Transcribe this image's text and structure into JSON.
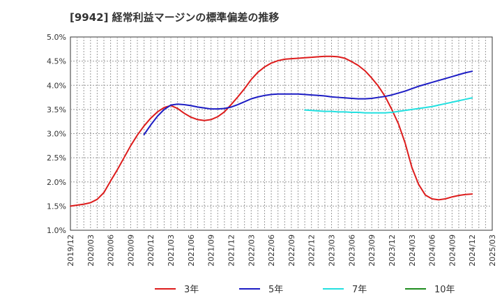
{
  "chart_data": {
    "type": "line",
    "title": "[9942]  経常利益マージンの標準偏差の推移",
    "x_ticks": [
      "2019/12",
      "2020/03",
      "2020/06",
      "2020/09",
      "2020/12",
      "2021/03",
      "2021/06",
      "2021/09",
      "2021/12",
      "2022/03",
      "2022/06",
      "2022/09",
      "2022/12",
      "2023/03",
      "2023/06",
      "2023/09",
      "2023/12",
      "2024/03",
      "2024/06",
      "2024/09",
      "2024/12",
      "2025/03"
    ],
    "y_ticks": [
      "1.0%",
      "1.5%",
      "2.0%",
      "2.5%",
      "3.0%",
      "3.5%",
      "4.0%",
      "4.5%",
      "5.0%"
    ],
    "ylim": [
      1.0,
      5.0
    ],
    "grid": true,
    "legend_position": "bottom",
    "series": [
      {
        "name": "3年",
        "color": "#dd1c1c",
        "points": [
          [
            "2019/12",
            1.5
          ],
          [
            "2020/01",
            1.52
          ],
          [
            "2020/02",
            1.54
          ],
          [
            "2020/03",
            1.57
          ],
          [
            "2020/04",
            1.64
          ],
          [
            "2020/05",
            1.78
          ],
          [
            "2020/06",
            2.02
          ],
          [
            "2020/07",
            2.25
          ],
          [
            "2020/08",
            2.5
          ],
          [
            "2020/09",
            2.75
          ],
          [
            "2020/10",
            2.97
          ],
          [
            "2020/11",
            3.16
          ],
          [
            "2020/12",
            3.32
          ],
          [
            "2021/01",
            3.45
          ],
          [
            "2021/02",
            3.54
          ],
          [
            "2021/03",
            3.58
          ],
          [
            "2021/04",
            3.52
          ],
          [
            "2021/05",
            3.42
          ],
          [
            "2021/06",
            3.34
          ],
          [
            "2021/07",
            3.29
          ],
          [
            "2021/08",
            3.27
          ],
          [
            "2021/09",
            3.29
          ],
          [
            "2021/10",
            3.35
          ],
          [
            "2021/11",
            3.45
          ],
          [
            "2021/12",
            3.6
          ],
          [
            "2022/01",
            3.76
          ],
          [
            "2022/02",
            3.93
          ],
          [
            "2022/03",
            4.12
          ],
          [
            "2022/04",
            4.27
          ],
          [
            "2022/05",
            4.38
          ],
          [
            "2022/06",
            4.46
          ],
          [
            "2022/07",
            4.51
          ],
          [
            "2022/08",
            4.54
          ],
          [
            "2022/09",
            4.55
          ],
          [
            "2022/10",
            4.56
          ],
          [
            "2022/11",
            4.57
          ],
          [
            "2022/12",
            4.58
          ],
          [
            "2023/01",
            4.59
          ],
          [
            "2023/02",
            4.6
          ],
          [
            "2023/03",
            4.6
          ],
          [
            "2023/04",
            4.59
          ],
          [
            "2023/05",
            4.56
          ],
          [
            "2023/06",
            4.49
          ],
          [
            "2023/07",
            4.41
          ],
          [
            "2023/08",
            4.3
          ],
          [
            "2023/09",
            4.15
          ],
          [
            "2023/10",
            3.98
          ],
          [
            "2023/11",
            3.77
          ],
          [
            "2023/12",
            3.5
          ],
          [
            "2024/01",
            3.2
          ],
          [
            "2024/02",
            2.8
          ],
          [
            "2024/03",
            2.3
          ],
          [
            "2024/04",
            1.95
          ],
          [
            "2024/05",
            1.73
          ],
          [
            "2024/06",
            1.65
          ],
          [
            "2024/07",
            1.63
          ],
          [
            "2024/08",
            1.65
          ],
          [
            "2024/09",
            1.69
          ],
          [
            "2024/10",
            1.72
          ],
          [
            "2024/11",
            1.74
          ],
          [
            "2024/12",
            1.75
          ]
        ]
      },
      {
        "name": "5年",
        "color": "#1c1cc4",
        "points": [
          [
            "2020/11",
            2.98
          ],
          [
            "2020/12",
            3.18
          ],
          [
            "2021/01",
            3.36
          ],
          [
            "2021/02",
            3.5
          ],
          [
            "2021/03",
            3.59
          ],
          [
            "2021/04",
            3.61
          ],
          [
            "2021/05",
            3.6
          ],
          [
            "2021/06",
            3.58
          ],
          [
            "2021/07",
            3.55
          ],
          [
            "2021/08",
            3.53
          ],
          [
            "2021/09",
            3.51
          ],
          [
            "2021/10",
            3.51
          ],
          [
            "2021/11",
            3.52
          ],
          [
            "2021/12",
            3.55
          ],
          [
            "2022/01",
            3.6
          ],
          [
            "2022/02",
            3.66
          ],
          [
            "2022/03",
            3.72
          ],
          [
            "2022/04",
            3.76
          ],
          [
            "2022/05",
            3.79
          ],
          [
            "2022/06",
            3.81
          ],
          [
            "2022/07",
            3.82
          ],
          [
            "2022/08",
            3.82
          ],
          [
            "2022/09",
            3.82
          ],
          [
            "2022/10",
            3.82
          ],
          [
            "2022/11",
            3.81
          ],
          [
            "2022/12",
            3.8
          ],
          [
            "2023/01",
            3.79
          ],
          [
            "2023/02",
            3.78
          ],
          [
            "2023/03",
            3.76
          ],
          [
            "2023/04",
            3.75
          ],
          [
            "2023/05",
            3.74
          ],
          [
            "2023/06",
            3.73
          ],
          [
            "2023/07",
            3.72
          ],
          [
            "2023/08",
            3.72
          ],
          [
            "2023/09",
            3.73
          ],
          [
            "2023/10",
            3.75
          ],
          [
            "2023/11",
            3.77
          ],
          [
            "2023/12",
            3.8
          ],
          [
            "2024/01",
            3.84
          ],
          [
            "2024/02",
            3.88
          ],
          [
            "2024/03",
            3.93
          ],
          [
            "2024/04",
            3.98
          ],
          [
            "2024/05",
            4.02
          ],
          [
            "2024/06",
            4.06
          ],
          [
            "2024/07",
            4.1
          ],
          [
            "2024/08",
            4.14
          ],
          [
            "2024/09",
            4.18
          ],
          [
            "2024/10",
            4.22
          ],
          [
            "2024/11",
            4.26
          ],
          [
            "2024/12",
            4.29
          ]
        ]
      },
      {
        "name": "7年",
        "color": "#22e0e0",
        "points": [
          [
            "2022/11",
            3.49
          ],
          [
            "2022/12",
            3.48
          ],
          [
            "2023/01",
            3.47
          ],
          [
            "2023/02",
            3.46
          ],
          [
            "2023/03",
            3.46
          ],
          [
            "2023/04",
            3.45
          ],
          [
            "2023/05",
            3.45
          ],
          [
            "2023/06",
            3.44
          ],
          [
            "2023/07",
            3.44
          ],
          [
            "2023/08",
            3.43
          ],
          [
            "2023/09",
            3.43
          ],
          [
            "2023/10",
            3.43
          ],
          [
            "2023/11",
            3.43
          ],
          [
            "2023/12",
            3.44
          ],
          [
            "2024/01",
            3.46
          ],
          [
            "2024/02",
            3.48
          ],
          [
            "2024/03",
            3.5
          ],
          [
            "2024/04",
            3.52
          ],
          [
            "2024/05",
            3.54
          ],
          [
            "2024/06",
            3.56
          ],
          [
            "2024/07",
            3.59
          ],
          [
            "2024/08",
            3.62
          ],
          [
            "2024/09",
            3.65
          ],
          [
            "2024/10",
            3.68
          ],
          [
            "2024/11",
            3.71
          ],
          [
            "2024/12",
            3.74
          ]
        ]
      },
      {
        "name": "10年",
        "color": "#1e8c1e",
        "points": []
      }
    ]
  }
}
